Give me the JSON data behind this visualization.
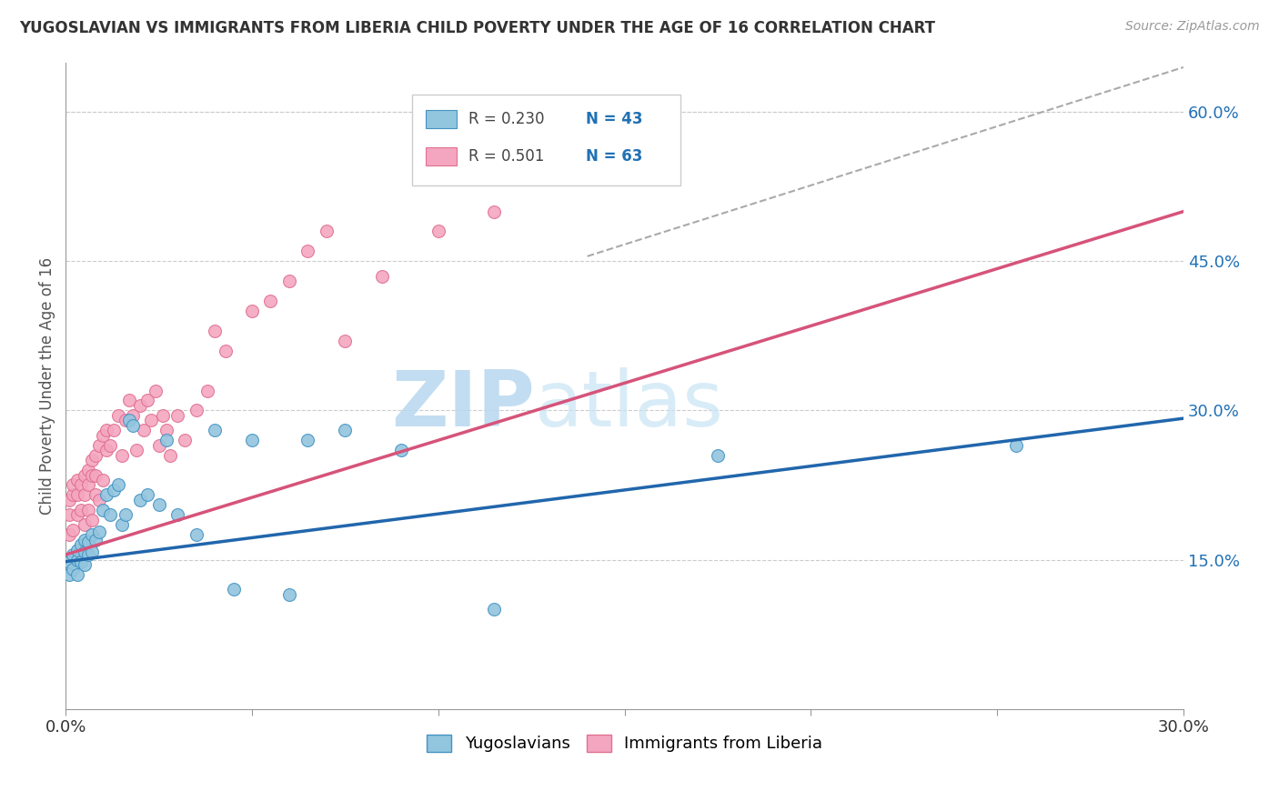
{
  "title": "YUGOSLAVIAN VS IMMIGRANTS FROM LIBERIA CHILD POVERTY UNDER THE AGE OF 16 CORRELATION CHART",
  "source": "Source: ZipAtlas.com",
  "ylabel": "Child Poverty Under the Age of 16",
  "xlim": [
    0.0,
    0.3
  ],
  "ylim": [
    0.0,
    0.65
  ],
  "xticks": [
    0.0,
    0.05,
    0.1,
    0.15,
    0.2,
    0.25,
    0.3
  ],
  "xticklabels": [
    "0.0%",
    "",
    "",
    "",
    "",
    "",
    "30.0%"
  ],
  "yticks_right": [
    0.15,
    0.3,
    0.45,
    0.6
  ],
  "ytick_right_labels": [
    "15.0%",
    "30.0%",
    "45.0%",
    "60.0%"
  ],
  "watermark_zip": "ZIP",
  "watermark_atlas": "atlas",
  "series1_label": "Yugoslavians",
  "series2_label": "Immigrants from Liberia",
  "series1_color": "#92c5de",
  "series2_color": "#f4a6c0",
  "series1_edge_color": "#4393c3",
  "series2_edge_color": "#e07090",
  "series1_line_color": "#2166ac",
  "series2_line_color": "#d6537a",
  "legend_r1": "R = 0.230",
  "legend_n1": "N = 43",
  "legend_r2": "R = 0.501",
  "legend_n2": "N = 63",
  "series1_x": [
    0.001,
    0.001,
    0.002,
    0.002,
    0.003,
    0.003,
    0.003,
    0.004,
    0.004,
    0.005,
    0.005,
    0.005,
    0.006,
    0.006,
    0.007,
    0.007,
    0.008,
    0.009,
    0.01,
    0.011,
    0.012,
    0.013,
    0.014,
    0.015,
    0.016,
    0.017,
    0.018,
    0.02,
    0.022,
    0.025,
    0.027,
    0.03,
    0.035,
    0.04,
    0.045,
    0.05,
    0.06,
    0.065,
    0.075,
    0.09,
    0.115,
    0.175,
    0.255
  ],
  "series1_y": [
    0.135,
    0.148,
    0.14,
    0.155,
    0.135,
    0.15,
    0.16,
    0.148,
    0.165,
    0.145,
    0.158,
    0.17,
    0.155,
    0.168,
    0.158,
    0.175,
    0.17,
    0.178,
    0.2,
    0.215,
    0.195,
    0.22,
    0.225,
    0.185,
    0.195,
    0.29,
    0.285,
    0.21,
    0.215,
    0.205,
    0.27,
    0.195,
    0.175,
    0.28,
    0.12,
    0.27,
    0.115,
    0.27,
    0.28,
    0.26,
    0.1,
    0.255,
    0.265
  ],
  "series2_x": [
    0.001,
    0.001,
    0.001,
    0.002,
    0.002,
    0.002,
    0.003,
    0.003,
    0.003,
    0.004,
    0.004,
    0.005,
    0.005,
    0.005,
    0.006,
    0.006,
    0.006,
    0.007,
    0.007,
    0.007,
    0.008,
    0.008,
    0.008,
    0.009,
    0.009,
    0.01,
    0.01,
    0.011,
    0.011,
    0.012,
    0.013,
    0.014,
    0.015,
    0.016,
    0.017,
    0.018,
    0.019,
    0.02,
    0.021,
    0.022,
    0.023,
    0.024,
    0.025,
    0.026,
    0.027,
    0.028,
    0.03,
    0.032,
    0.035,
    0.038,
    0.04,
    0.043,
    0.05,
    0.055,
    0.06,
    0.065,
    0.07,
    0.075,
    0.085,
    0.1,
    0.115,
    0.135,
    0.155
  ],
  "series2_y": [
    0.175,
    0.195,
    0.21,
    0.18,
    0.215,
    0.225,
    0.195,
    0.215,
    0.23,
    0.2,
    0.225,
    0.185,
    0.215,
    0.235,
    0.2,
    0.225,
    0.24,
    0.19,
    0.235,
    0.25,
    0.215,
    0.235,
    0.255,
    0.21,
    0.265,
    0.23,
    0.275,
    0.26,
    0.28,
    0.265,
    0.28,
    0.295,
    0.255,
    0.29,
    0.31,
    0.295,
    0.26,
    0.305,
    0.28,
    0.31,
    0.29,
    0.32,
    0.265,
    0.295,
    0.28,
    0.255,
    0.295,
    0.27,
    0.3,
    0.32,
    0.38,
    0.36,
    0.4,
    0.41,
    0.43,
    0.46,
    0.48,
    0.37,
    0.435,
    0.48,
    0.5,
    0.54,
    0.545
  ],
  "dash_line_x": [
    0.14,
    0.3
  ],
  "dash_line_y": [
    0.455,
    0.645
  ]
}
